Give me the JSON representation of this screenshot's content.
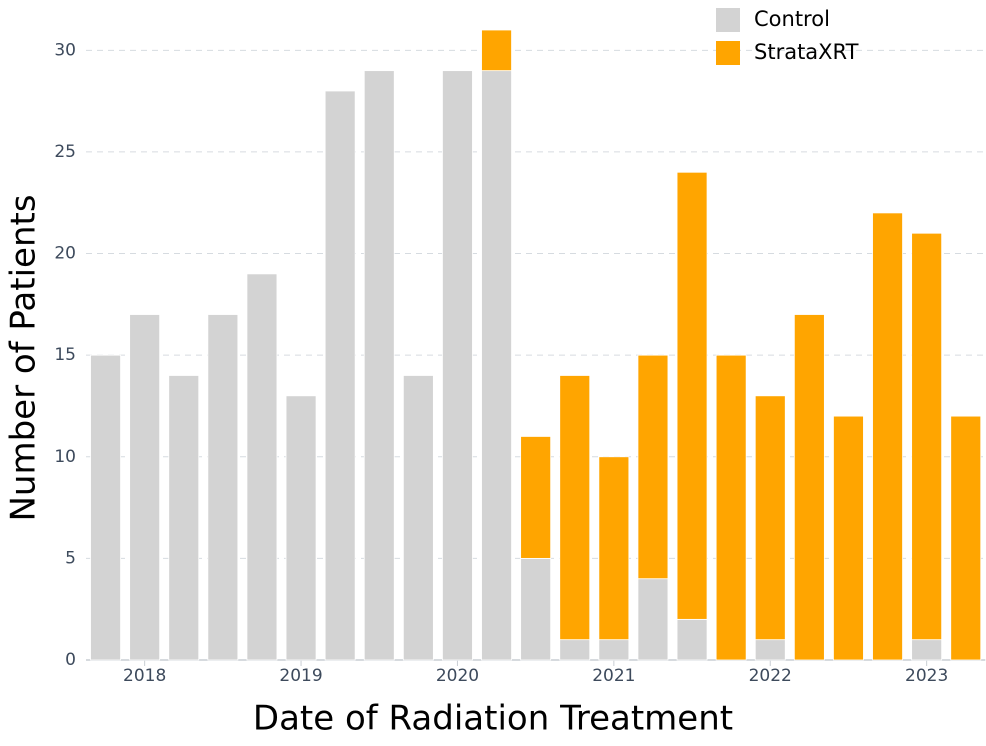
{
  "chart_data": {
    "type": "stacked-bar",
    "x_label": "Date of Radiation Treatment",
    "y_label": "Number of Patients",
    "categories": [
      null,
      "2018",
      null,
      null,
      null,
      "2019",
      null,
      null,
      null,
      "2020",
      null,
      null,
      null,
      "2021",
      null,
      null,
      null,
      "2022",
      null,
      null,
      null,
      "2023",
      null
    ],
    "series": [
      {
        "name": "Control",
        "color": "#d3d3d3",
        "values": [
          15,
          17,
          14,
          17,
          19,
          13,
          28,
          29,
          14,
          29,
          29,
          5,
          1,
          1,
          4,
          2,
          0,
          1,
          0,
          0,
          0,
          1,
          0
        ]
      },
      {
        "name": "StrataXRT",
        "color": "#ffa500",
        "values": [
          0,
          0,
          0,
          0,
          0,
          0,
          0,
          0,
          0,
          0,
          2,
          6,
          13,
          9,
          11,
          22,
          15,
          12,
          17,
          12,
          22,
          20,
          12
        ]
      }
    ],
    "ylim": [
      0,
      31
    ],
    "yticks": [
      0,
      5,
      10,
      15,
      20,
      25,
      30
    ],
    "grid": true,
    "legend": "top-right"
  }
}
